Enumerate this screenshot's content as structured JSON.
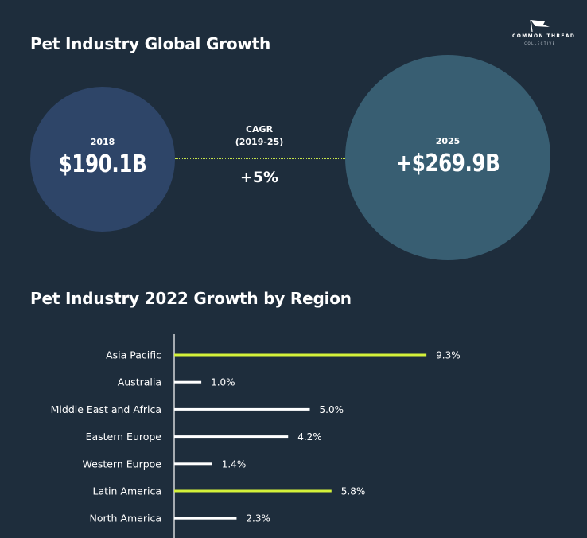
{
  "titles": {
    "growth": "Pet Industry Global Growth",
    "region": "Pet Industry 2022 Growth by Region"
  },
  "logo": {
    "line1": "COMMON THREAD",
    "line2": "COLLECTIVE"
  },
  "growth": {
    "start_year": "2018",
    "start_value": "$190.1B",
    "end_year": "2025",
    "end_value": "+$269.9B",
    "cagr_label": "CAGR",
    "cagr_period": "(2019-25)",
    "cagr_value": "+5%"
  },
  "colors": {
    "background": "#1e2d3c",
    "circle_2018": "#2e4568",
    "circle_2025": "#385e72",
    "highlight_bar": "#d4f13a",
    "default_bar": "#ffffff",
    "axis": "#ffffff"
  },
  "chart_data": {
    "type": "bar",
    "orientation": "horizontal",
    "categories": [
      "Asia Pacific",
      "Australia",
      "Middle East and Africa",
      "Eastern Europe",
      "Western Eurpoe",
      "Latin America",
      "North America"
    ],
    "values": [
      9.3,
      1.0,
      5.0,
      4.2,
      1.4,
      5.8,
      2.3
    ],
    "value_labels": [
      "9.3%",
      "1.0%",
      "5.0%",
      "4.2%",
      "1.4%",
      "5.8%",
      "2.3%"
    ],
    "highlighted": [
      true,
      false,
      false,
      false,
      false,
      true,
      false
    ],
    "unit": "%",
    "xlim": [
      0,
      10
    ],
    "grid": false,
    "legend": "none"
  }
}
